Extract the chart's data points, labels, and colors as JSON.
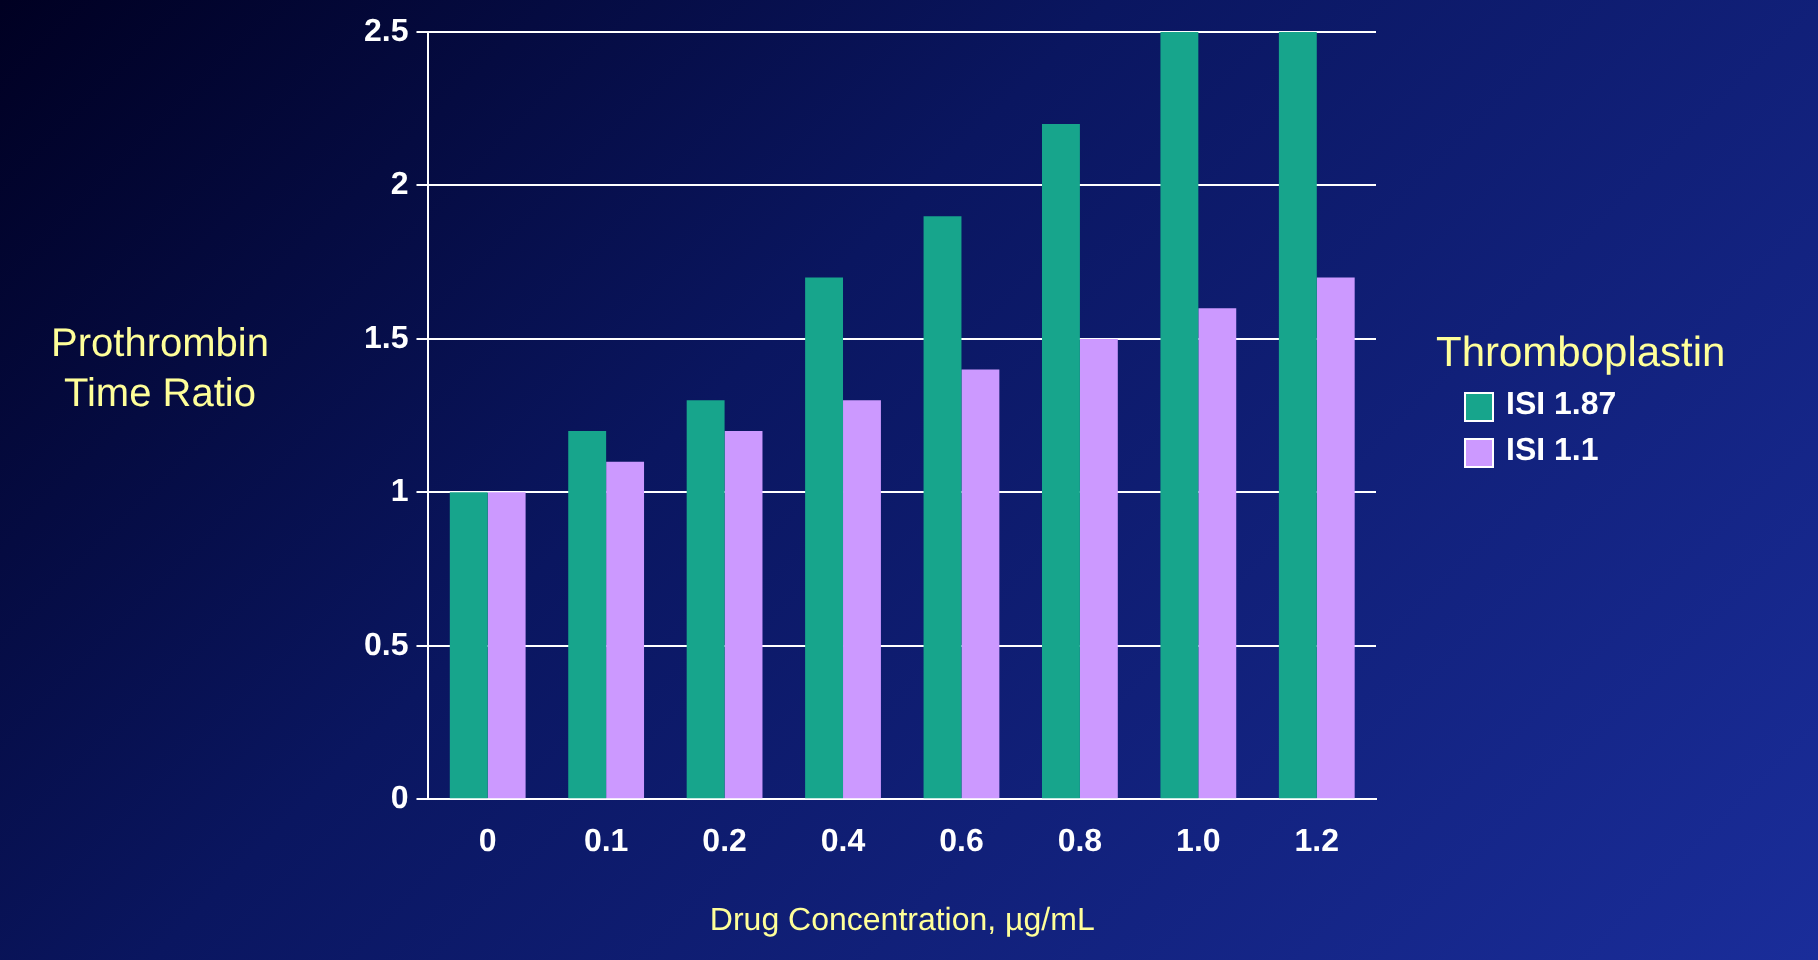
{
  "chart_data": {
    "type": "bar",
    "xlabel": "Drug Concentration, µg/mL",
    "ylabel": "Prothrombin Time Ratio",
    "legend_title": "Thromboplastin",
    "categories": [
      "0",
      "0.1",
      "0.2",
      "0.4",
      "0.6",
      "0.8",
      "1.0",
      "1.2"
    ],
    "series": [
      {
        "name": "ISI 1.87",
        "color": "#17a58c",
        "values": [
          1.0,
          1.2,
          1.3,
          1.7,
          1.9,
          2.2,
          2.5,
          2.5
        ]
      },
      {
        "name": "ISI 1.1",
        "color": "#cc99ff",
        "values": [
          1.0,
          1.1,
          1.2,
          1.3,
          1.4,
          1.5,
          1.6,
          1.7
        ]
      }
    ],
    "ylim": [
      0,
      2.5
    ],
    "yticks": [
      0,
      0.5,
      1,
      1.5,
      2,
      2.5
    ],
    "grid": "y",
    "legend": "right"
  }
}
